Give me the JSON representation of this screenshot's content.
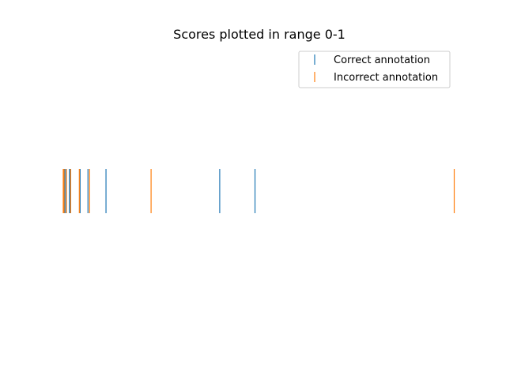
{
  "chart_data": {
    "type": "scatter",
    "marker": "vertical-line",
    "title": "Scores plotted in range 0-1",
    "xlabel": "",
    "ylabel": "",
    "axes_visible": false,
    "grid": false,
    "legend_position": "top-right",
    "series": [
      {
        "name": "Correct annotation",
        "color": "#1f77b4",
        "values": [
          0.003,
          0.006,
          0.016,
          0.018,
          0.043,
          0.063,
          0.109,
          0.399,
          0.489
        ]
      },
      {
        "name": "Incorrect annotation",
        "color": "#ff7f0e",
        "values": [
          0.0,
          0.002,
          0.008,
          0.019,
          0.041,
          0.067,
          0.224,
          0.997
        ]
      }
    ]
  }
}
